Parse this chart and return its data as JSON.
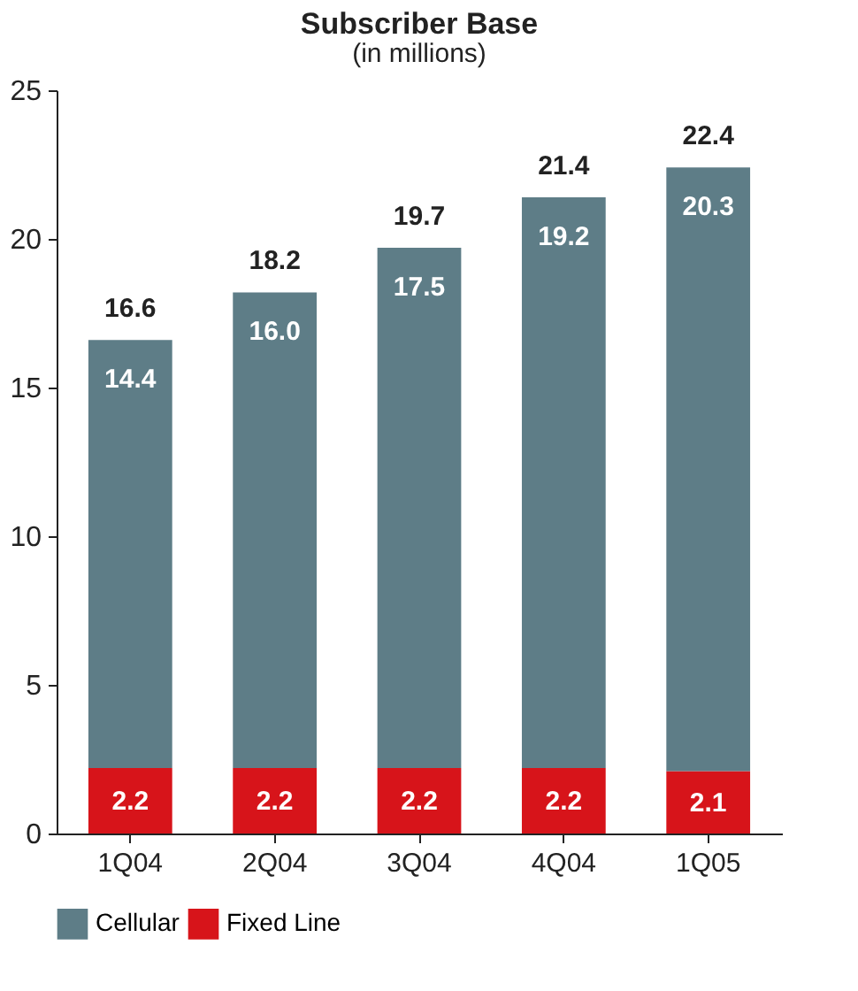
{
  "chart_data": {
    "type": "bar",
    "title": "Subscriber Base",
    "subtitle": "(in millions)",
    "categories": [
      "1Q04",
      "2Q04",
      "3Q04",
      "4Q04",
      "1Q05"
    ],
    "stacked": true,
    "series": [
      {
        "name": "Fixed Line",
        "color": "#d7141a",
        "values": [
          2.2,
          2.2,
          2.2,
          2.2,
          2.1
        ],
        "value_labels": [
          "2.2",
          "2.2",
          "2.2",
          "2.2",
          "2.1"
        ]
      },
      {
        "name": "Cellular",
        "color": "#5e7d87",
        "values": [
          14.4,
          16.0,
          17.5,
          19.2,
          20.3
        ],
        "value_labels": [
          "14.4",
          "16.0",
          "17.5",
          "19.2",
          "20.3"
        ]
      }
    ],
    "totals": [
      "16.6",
      "18.2",
      "19.7",
      "21.4",
      "22.4"
    ],
    "ylim": [
      0,
      25
    ],
    "yticks": [
      0,
      5,
      10,
      15,
      20,
      25
    ],
    "grid": false,
    "legend": "bottom"
  }
}
